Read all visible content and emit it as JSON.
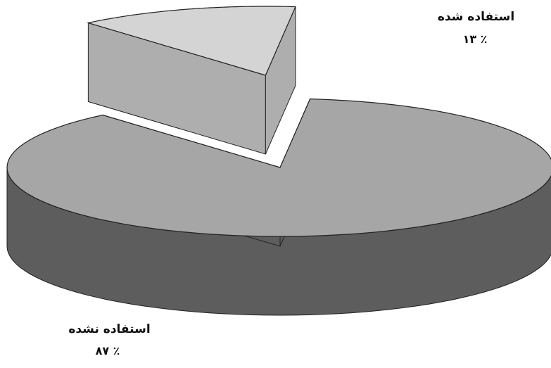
{
  "chart_data": {
    "type": "pie",
    "style": "3d-exploded",
    "slices": [
      {
        "label": "استفاده نشده",
        "value": 87,
        "value_text": "٪ ۸۷",
        "color": "#a6a6a6"
      },
      {
        "label": "استفاده شده",
        "value": 13,
        "value_text": "٪ ۱۳",
        "color": "#d4d4d4"
      }
    ],
    "legend": "none"
  }
}
